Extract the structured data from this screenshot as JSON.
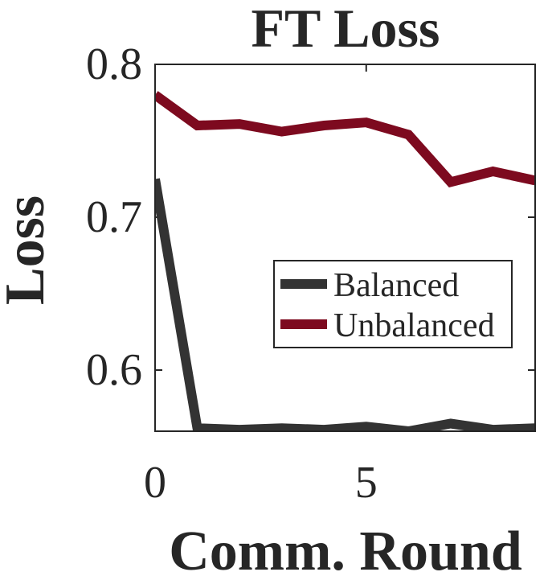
{
  "chart_data": {
    "type": "line",
    "title": "FT Loss",
    "xlabel": "Comm. Round",
    "ylabel": "Loss",
    "xlim": [
      0,
      9
    ],
    "ylim": [
      0.56,
      0.8
    ],
    "x_ticks": [
      0,
      5
    ],
    "x_tick_labels": [
      "0",
      "5"
    ],
    "y_ticks": [
      0.6,
      0.7,
      0.8
    ],
    "y_tick_labels": [
      "0.6",
      "0.7",
      "0.8"
    ],
    "grid": false,
    "legend_position": "center-right",
    "x": [
      0,
      1,
      2,
      3,
      4,
      5,
      6,
      7,
      8,
      9
    ],
    "series": [
      {
        "name": "Balanced",
        "color": "#333333",
        "values": [
          0.725,
          0.562,
          0.561,
          0.562,
          0.561,
          0.563,
          0.56,
          0.565,
          0.561,
          0.562
        ]
      },
      {
        "name": "Unbalanced",
        "color": "#7d0a1f",
        "values": [
          0.78,
          0.76,
          0.761,
          0.756,
          0.76,
          0.762,
          0.754,
          0.723,
          0.73,
          0.724
        ]
      }
    ]
  }
}
